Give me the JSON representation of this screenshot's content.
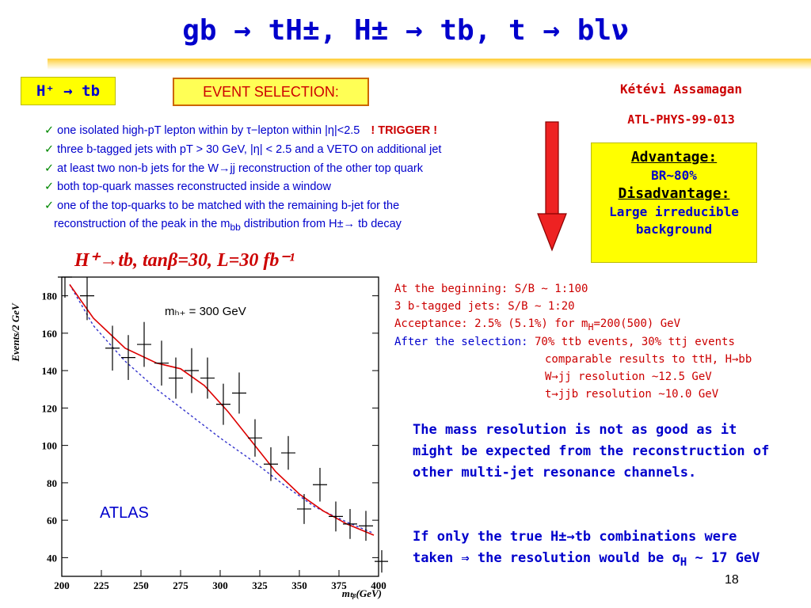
{
  "slide": {
    "title": "gb → tH±, H± → tb, t → blν",
    "channel_label": "H⁺ → tb",
    "section_label": "EVENT SELECTION:",
    "author": "Kétévi Assamagan",
    "reference": "ATL-PHYS-99-013",
    "page_number": "18",
    "accent_color": "#0000cc",
    "highlight_color": "#ffff00"
  },
  "criteria": [
    {
      "text": "one isolated high-pT lepton within by τ−lepton within |η|<2.5",
      "extra": "! TRIGGER !"
    },
    {
      "text": "three b-tagged jets with pT > 30 GeV, |η| < 2.5 and a VETO on additional jet"
    },
    {
      "text": "at least two non-b jets for the W→jj reconstruction of the other top quark"
    },
    {
      "text": "both top-quark masses reconstructed inside a window"
    },
    {
      "text": "one of the top-quarks to be matched with the remaining b-jet for the"
    }
  ],
  "criteria_continuation": "reconstruction of the peak in the m",
  "criteria_continuation_sub": "bb",
  "criteria_continuation_tail": " distribution from H±→ tb decay",
  "advantage_box": {
    "advantage_heading": "Advantage:",
    "advantage_text": "BR~80%",
    "disadvantage_heading": "Disadvantage:",
    "disadvantage_line1": "Large irreducible",
    "disadvantage_line2": "background"
  },
  "results": {
    "line1": "At the beginning: S/B ~ 1:100",
    "line2": "3 b-tagged jets:  S/B ~ 1:20",
    "line3_pre": "Acceptance: 2.5% (5.1%) for m",
    "line3_sub": "H",
    "line3_post": "=200(500) GeV",
    "after_label": "After the selection:",
    "after_text": " 70% ttb events, 30% ttj events",
    "line5": "comparable results to ttH, H→bb",
    "line6": "W→jj resolution ~12.5 GeV",
    "line7": "t→jjb resolution ~10.0 GeV"
  },
  "notes": {
    "note1": "The mass resolution is not as good as it might be expected from the reconstruction of other multi-jet resonance channels.",
    "note2_pre": "If only the true H±→tb combinations were taken ⇒ the resolution would be σ",
    "note2_sub": "H",
    "note2_post": " ~ 17 GeV"
  },
  "chart_data": {
    "type": "scatter",
    "title": "H⁺→tb, tanβ=30, L=30 fb⁻¹",
    "annotation": "mₕ₊ = 300 GeV",
    "experiment_label": "ATLAS",
    "xlabel": "mₜᵦ(GeV)",
    "ylabel": "Events/2 GeV",
    "xlim": [
      200,
      400
    ],
    "ylim": [
      30,
      190
    ],
    "x_ticks": [
      200,
      225,
      250,
      275,
      300,
      325,
      350,
      375,
      400
    ],
    "y_ticks": [
      40,
      60,
      80,
      100,
      120,
      140,
      160,
      180
    ],
    "points": [
      {
        "x": 202,
        "y": 190,
        "err": 11
      },
      {
        "x": 216,
        "y": 180,
        "err": 13
      },
      {
        "x": 232,
        "y": 152,
        "err": 12
      },
      {
        "x": 242,
        "y": 147,
        "err": 12
      },
      {
        "x": 252,
        "y": 154,
        "err": 12
      },
      {
        "x": 263,
        "y": 144,
        "err": 12
      },
      {
        "x": 272,
        "y": 136,
        "err": 11
      },
      {
        "x": 282,
        "y": 140,
        "err": 12
      },
      {
        "x": 292,
        "y": 136,
        "err": 11
      },
      {
        "x": 302,
        "y": 122,
        "err": 11
      },
      {
        "x": 312,
        "y": 128,
        "err": 11
      },
      {
        "x": 322,
        "y": 104,
        "err": 10
      },
      {
        "x": 332,
        "y": 90,
        "err": 9
      },
      {
        "x": 343,
        "y": 96,
        "err": 9
      },
      {
        "x": 353,
        "y": 66,
        "err": 8
      },
      {
        "x": 363,
        "y": 79,
        "err": 9
      },
      {
        "x": 373,
        "y": 62,
        "err": 8
      },
      {
        "x": 382,
        "y": 58,
        "err": 8
      },
      {
        "x": 392,
        "y": 57,
        "err": 8
      },
      {
        "x": 402,
        "y": 38,
        "err": 6
      }
    ],
    "fit_curve": {
      "x": [
        205,
        220,
        240,
        260,
        275,
        290,
        305,
        320,
        335,
        350,
        365,
        380,
        397
      ],
      "y": [
        186,
        168,
        152,
        144,
        141,
        132,
        118,
        102,
        86,
        74,
        65,
        58,
        52
      ],
      "color": "#dd0000"
    },
    "background_curve": {
      "x": [
        205,
        220,
        240,
        260,
        280,
        300,
        320,
        340,
        360,
        380,
        397
      ],
      "y": [
        186,
        164,
        145,
        130,
        117,
        104,
        92,
        79,
        67,
        59,
        53
      ],
      "color": "#3333cc"
    }
  }
}
